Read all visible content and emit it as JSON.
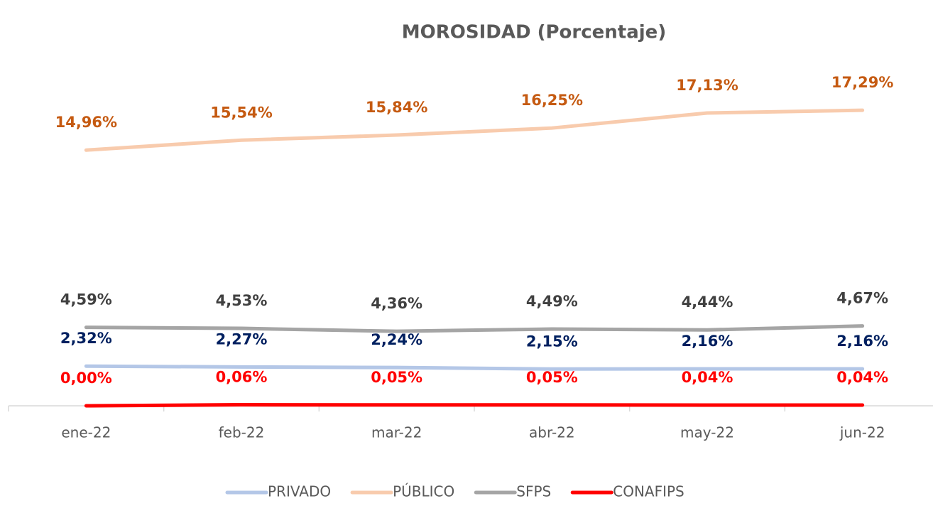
{
  "chart_data": {
    "type": "line",
    "title": "MOROSIDAD (Porcentaje)",
    "categories": [
      "ene-22",
      "feb-22",
      "mar-22",
      "abr-22",
      "may-22",
      "jun-22"
    ],
    "ylim": [
      0,
      20
    ],
    "series": [
      {
        "name": "PRIVADO",
        "color": "#b4c7e7",
        "label_color": "#002060",
        "values": [
          2.32,
          2.27,
          2.24,
          2.15,
          2.16,
          2.16
        ],
        "value_labels": [
          "2,32%",
          "2,27%",
          "2,24%",
          "2,15%",
          "2,16%",
          "2,16%"
        ]
      },
      {
        "name": "PÚBLICO",
        "color": "#f8cbad",
        "label_color": "#c55a11",
        "values": [
          14.96,
          15.54,
          15.84,
          16.25,
          17.13,
          17.29
        ],
        "value_labels": [
          "14,96%",
          "15,54%",
          "15,84%",
          "16,25%",
          "17,13%",
          "17,29%"
        ]
      },
      {
        "name": "SFPS",
        "color": "#a5a5a5",
        "label_color": "#404040",
        "values": [
          4.59,
          4.53,
          4.36,
          4.49,
          4.44,
          4.67
        ],
        "value_labels": [
          "4,59%",
          "4,53%",
          "4,36%",
          "4,49%",
          "4,44%",
          "4,67%"
        ]
      },
      {
        "name": "CONAFIPS",
        "color": "#ff0000",
        "label_color": "#ff0000",
        "values": [
          0.0,
          0.06,
          0.05,
          0.05,
          0.04,
          0.04
        ],
        "value_labels": [
          "0,00%",
          "0,06%",
          "0,05%",
          "0,05%",
          "0,04%",
          "0,04%"
        ]
      }
    ]
  }
}
